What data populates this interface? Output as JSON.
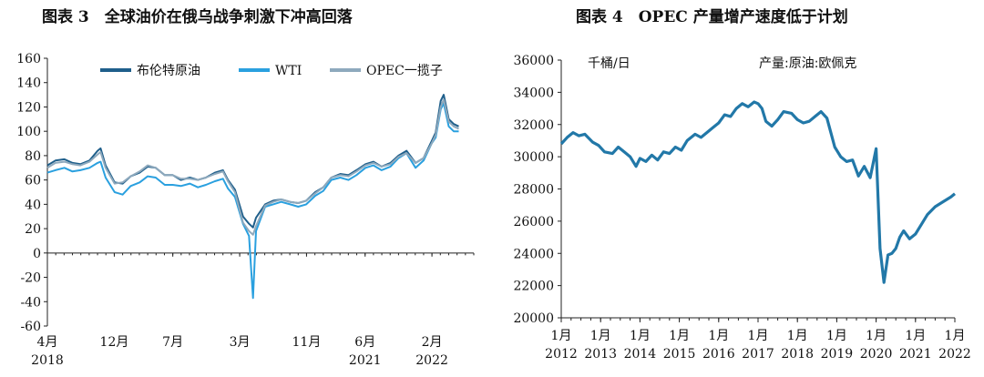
{
  "panels": {
    "left": {
      "title": "图表 3　全球油价在俄乌战争刺激下冲高回落"
    },
    "right": {
      "title": "图表 4　OPEC 产量增产速度低于计划"
    }
  },
  "chart_data": [
    {
      "type": "line",
      "title": "全球油价在俄乌战争刺激下冲高回落",
      "ylim": [
        -60,
        160
      ],
      "yticks": [
        -60,
        -40,
        -20,
        0,
        20,
        40,
        60,
        80,
        100,
        120,
        140,
        160
      ],
      "xlim": [
        2018.25,
        2022.5
      ],
      "xticks": [
        {
          "x": 2018.25,
          "label": "4月",
          "year": "2018"
        },
        {
          "x": 2018.917,
          "label": "12月",
          "year": ""
        },
        {
          "x": 2019.5,
          "label": "7月",
          "year": ""
        },
        {
          "x": 2020.167,
          "label": "3月",
          "year": ""
        },
        {
          "x": 2020.833,
          "label": "11月",
          "year": ""
        },
        {
          "x": 2021.417,
          "label": "6月",
          "year": "2021"
        },
        {
          "x": 2022.083,
          "label": "2月",
          "year": "2022"
        }
      ],
      "legend_position": "top",
      "grid": false,
      "x": [
        2018.25,
        2018.33,
        2018.42,
        2018.5,
        2018.58,
        2018.67,
        2018.75,
        2018.78,
        2018.83,
        2018.92,
        2019.0,
        2019.08,
        2019.17,
        2019.25,
        2019.33,
        2019.42,
        2019.5,
        2019.58,
        2019.67,
        2019.75,
        2019.83,
        2019.92,
        2020.0,
        2020.05,
        2020.12,
        2020.2,
        2020.26,
        2020.3,
        2020.33,
        2020.42,
        2020.5,
        2020.58,
        2020.67,
        2020.75,
        2020.83,
        2020.92,
        2021.0,
        2021.08,
        2021.17,
        2021.25,
        2021.33,
        2021.42,
        2021.5,
        2021.58,
        2021.67,
        2021.75,
        2021.83,
        2021.92,
        2022.0,
        2022.08,
        2022.12,
        2022.17,
        2022.2,
        2022.25,
        2022.3,
        2022.35
      ],
      "series": [
        {
          "name": "布伦特原油",
          "color": "#1f5f8b",
          "values": [
            72,
            76,
            77,
            74,
            73,
            76,
            84,
            86,
            72,
            58,
            57,
            63,
            66,
            71,
            70,
            64,
            64,
            60,
            62,
            60,
            62,
            66,
            68,
            60,
            52,
            30,
            24,
            21,
            29,
            40,
            43,
            44,
            42,
            41,
            43,
            50,
            54,
            62,
            65,
            64,
            68,
            73,
            75,
            71,
            74,
            80,
            84,
            74,
            78,
            92,
            99,
            125,
            130,
            110,
            106,
            104
          ]
        },
        {
          "name": "WTI",
          "color": "#2aa0df",
          "values": [
            66,
            68,
            70,
            67,
            68,
            70,
            74,
            75,
            62,
            50,
            48,
            55,
            58,
            63,
            62,
            56,
            56,
            55,
            57,
            54,
            56,
            59,
            61,
            53,
            46,
            24,
            14,
            -37,
            18,
            38,
            40,
            42,
            40,
            38,
            40,
            47,
            51,
            60,
            62,
            60,
            64,
            70,
            72,
            68,
            71,
            78,
            82,
            70,
            76,
            90,
            95,
            118,
            123,
            104,
            100,
            100
          ]
        },
        {
          "name": "OPEC一揽子",
          "color": "#8ea9bd",
          "values": [
            70,
            74,
            75,
            73,
            72,
            75,
            81,
            83,
            70,
            57,
            58,
            63,
            67,
            72,
            70,
            64,
            64,
            61,
            61,
            60,
            62,
            65,
            67,
            59,
            50,
            25,
            18,
            15,
            22,
            39,
            42,
            44,
            42,
            41,
            43,
            49,
            54,
            62,
            64,
            63,
            67,
            72,
            74,
            71,
            73,
            79,
            82,
            74,
            78,
            90,
            97,
            120,
            126,
            108,
            104,
            102
          ]
        }
      ]
    },
    {
      "type": "line",
      "title": "OPEC 产量增产速度低于计划",
      "ylim": [
        20000,
        36000
      ],
      "yticks": [
        20000,
        22000,
        24000,
        26000,
        28000,
        30000,
        32000,
        34000,
        36000
      ],
      "xlim": [
        2012.0,
        2022.0
      ],
      "xtick_top": "1月",
      "xticks": [
        2012,
        2013,
        2014,
        2015,
        2016,
        2017,
        2018,
        2019,
        2020,
        2021,
        2022
      ],
      "annotations": {
        "unit": "千桶/日",
        "series_label": "产量:原油:欧佩克"
      },
      "series": [
        {
          "name": "产量:原油:欧佩克",
          "color": "#2278a8",
          "x": [
            2012.0,
            2012.15,
            2012.3,
            2012.45,
            2012.6,
            2012.8,
            2012.95,
            2013.1,
            2013.3,
            2013.45,
            2013.6,
            2013.75,
            2013.9,
            2014.0,
            2014.15,
            2014.3,
            2014.45,
            2014.6,
            2014.75,
            2014.9,
            2015.05,
            2015.2,
            2015.4,
            2015.55,
            2015.7,
            2015.85,
            2016.0,
            2016.15,
            2016.3,
            2016.45,
            2016.6,
            2016.75,
            2016.9,
            2017.0,
            2017.1,
            2017.2,
            2017.35,
            2017.5,
            2017.65,
            2017.85,
            2018.0,
            2018.15,
            2018.3,
            2018.45,
            2018.6,
            2018.75,
            2018.85,
            2018.95,
            2019.1,
            2019.25,
            2019.4,
            2019.55,
            2019.7,
            2019.85,
            2020.0,
            2020.1,
            2020.2,
            2020.3,
            2020.4,
            2020.5,
            2020.6,
            2020.7,
            2020.85,
            2021.0,
            2021.15,
            2021.3,
            2021.5,
            2021.7,
            2021.9,
            2022.0
          ],
          "values": [
            30800,
            31200,
            31500,
            31300,
            31400,
            30900,
            30700,
            30300,
            30200,
            30600,
            30300,
            30000,
            29400,
            29900,
            29700,
            30100,
            29800,
            30300,
            30200,
            30600,
            30400,
            31000,
            31400,
            31200,
            31500,
            31800,
            32100,
            32600,
            32500,
            33000,
            33300,
            33100,
            33400,
            33300,
            33000,
            32200,
            31900,
            32300,
            32800,
            32700,
            32300,
            32100,
            32200,
            32500,
            32800,
            32400,
            31500,
            30600,
            30000,
            29700,
            29800,
            28800,
            29400,
            28700,
            30500,
            24300,
            22200,
            23900,
            24000,
            24300,
            25000,
            25400,
            24900,
            25200,
            25800,
            26400,
            26900,
            27200,
            27500,
            27700
          ]
        }
      ]
    }
  ]
}
